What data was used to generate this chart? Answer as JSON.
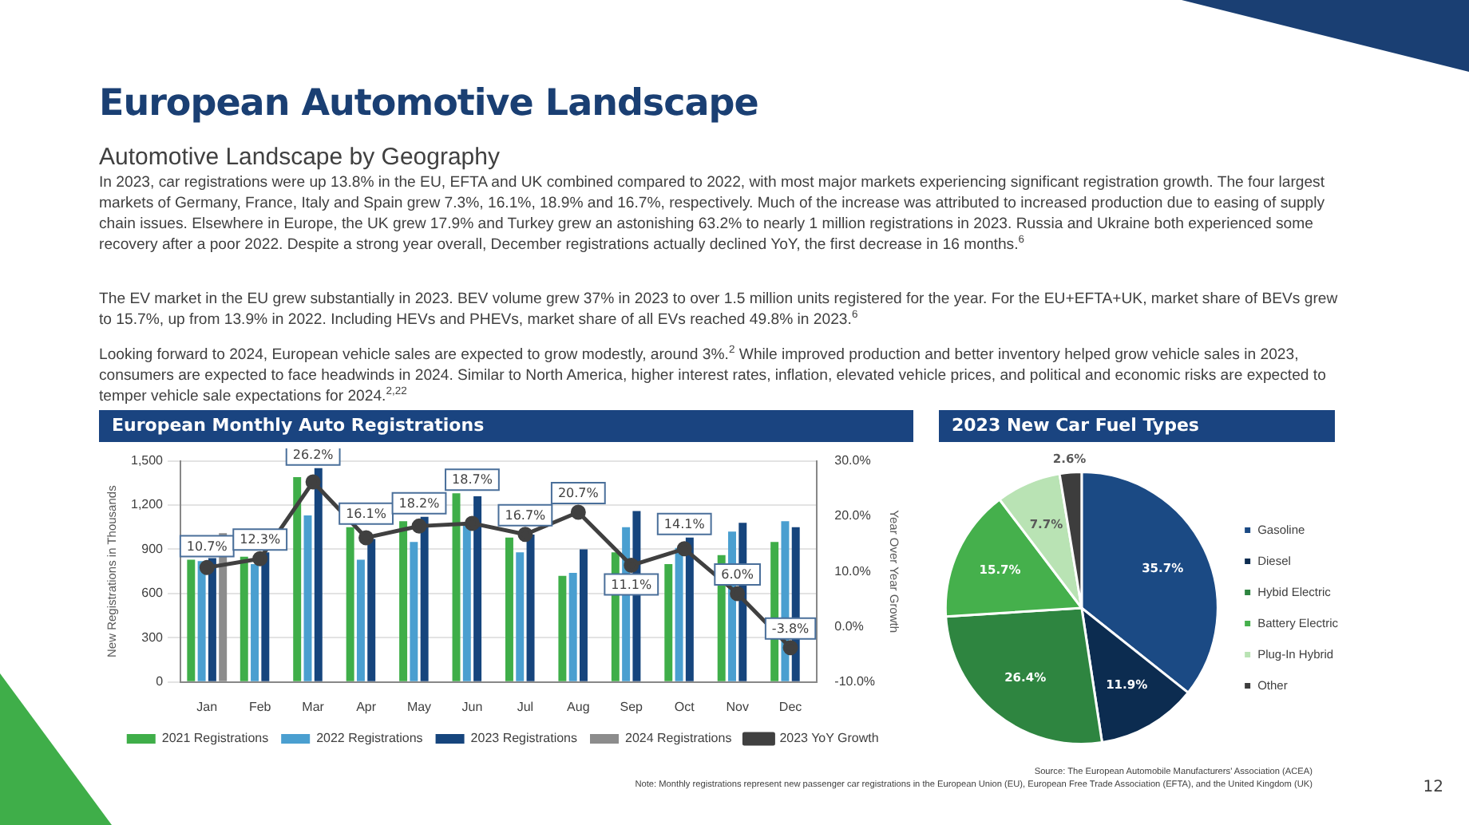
{
  "chart_data": [
    {
      "type": "bar",
      "title": "European Monthly Auto Registrations",
      "ylabel": "New Registrations in Thousands",
      "y2label": "Year Over Year Growth",
      "categories": [
        "Jan",
        "Feb",
        "Mar",
        "Apr",
        "May",
        "Jun",
        "Jul",
        "Aug",
        "Sep",
        "Oct",
        "Nov",
        "Dec"
      ],
      "series": [
        {
          "name": "2021 Registrations",
          "color": "#3fae49",
          "values": [
            830,
            850,
            1390,
            1050,
            1090,
            1280,
            980,
            720,
            880,
            800,
            860,
            950
          ]
        },
        {
          "name": "2022 Registrations",
          "color": "#4a9fd0",
          "values": [
            820,
            800,
            1130,
            830,
            950,
            1070,
            880,
            740,
            1050,
            910,
            1020,
            1090
          ]
        },
        {
          "name": "2023 Registrations",
          "color": "#16457d",
          "values": [
            840,
            880,
            1450,
            970,
            1120,
            1260,
            1000,
            900,
            1160,
            980,
            1080,
            1050
          ]
        },
        {
          "name": "2024 Registrations",
          "color": "#8c8c8c",
          "values": [
            1010,
            null,
            null,
            null,
            null,
            null,
            null,
            null,
            null,
            null,
            null,
            null
          ]
        },
        {
          "name": "2023 YoY Growth",
          "type": "line",
          "axis": "y2",
          "color": "#404040",
          "values": [
            10.7,
            12.3,
            26.2,
            16.1,
            18.2,
            18.7,
            16.7,
            20.7,
            11.1,
            14.1,
            6.0,
            -3.8
          ],
          "value_labels": [
            "10.7%",
            "12.3%",
            "26.2%",
            "16.1%",
            "18.2%",
            "18.7%",
            "16.7%",
            "20.7%",
            "11.1%",
            "14.1%",
            "6.0%",
            "-3.8%"
          ]
        }
      ],
      "ylim": [
        0,
        1500
      ],
      "yticks": [
        0,
        300,
        600,
        900,
        {
          "value": 1200,
          "label": "1,200"
        },
        {
          "value": 1500,
          "label": "1,500"
        }
      ],
      "y2lim": [
        -10,
        30
      ],
      "y2ticks": [
        {
          "value": -10,
          "label": "-10.0%"
        },
        {
          "value": 0,
          "label": "0.0%"
        },
        {
          "value": 10,
          "label": "10.0%"
        },
        {
          "value": 20,
          "label": "20.0%"
        },
        {
          "value": 30,
          "label": "30.0%"
        }
      ],
      "grid": "y",
      "legend": "bottom",
      "marker": "circle",
      "annotations": [
        "European Automotive Landscape",
        "Automotive Landscape by Geography",
        "In 2023, car registrations were up 13.8% in the EU, EFTA and UK combined compared to 2022, with most major markets experiencing significant registration growth. The four largest markets of Germany, France, Italy and Spain grew 7.3%, 16.1%, 18.9% and 16.7%, respectively. Much of the increase was attributed to increased production due to easing of supply chain issues. Elsewhere in Europe, the UK grew 17.9% and Turkey grew an astonishing 63.2% to nearly 1 million registrations in 2023. Russia and Ukraine both experienced some recovery after a poor 2022. Despite a strong year overall, December registrations actually declined YoY, the first decrease in 16 months.$^{6}$",
        "The EV market in the EU grew substantially in 2023. BEV volume grew 37% in 2023 to over 1.5 million units registered for the year. For the EU+EFTA+UK, market share of BEVs grew to 15.7%, up from 13.9% in 2022. Including HEVs and PHEVs, market share of all EVs reached 49.8% in 2023.$^{6}$",
        "Looking forward to 2024, European vehicle sales are expected to grow modestly, around 3%.$^{2}$ While improved production and better inventory helped grow vehicle sales in 2023, consumers are expected to face headwinds in 2024. Similar to North America, higher interest rates, inflation, elevated vehicle prices, and political and economic risks are expected to temper vehicle sale expectations for 2024.$^{2,22}$",
        "Source: The European Automobile Manufacturers' Association (ACEA)",
        "Note: Monthly registrations represent new passenger car registrations in the European Union (EU), European Free Trade Association (EFTA), and the United Kingdom (UK)",
        "12"
      ]
    },
    {
      "type": "pie",
      "title": "2023 New Car Fuel Types",
      "categories": [
        "Gasoline",
        "Diesel",
        "Hybid Electric",
        "Battery Electric",
        "Plug-In Hybrid",
        "Other"
      ],
      "values": [
        35.7,
        11.9,
        26.4,
        15.7,
        7.7,
        2.6
      ],
      "colors": [
        "#1b4a84",
        "#0c2c50",
        "#2e8540",
        "#45b04c",
        "#b9e3b4",
        "#3d3d3d"
      ],
      "value_labels": [
        "35.7%",
        "11.9%",
        "26.4%",
        "15.7%",
        "7.7%",
        "2.6%"
      ],
      "legend": "right"
    }
  ]
}
